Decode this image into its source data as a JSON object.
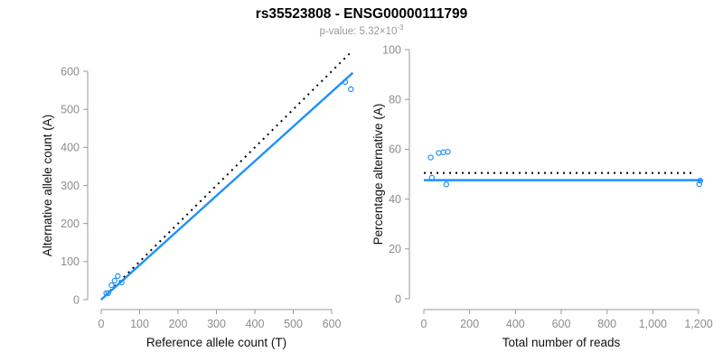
{
  "header": {
    "title": "rs35523808 - ENSG00000111799",
    "subtitle_label": "p-value: ",
    "subtitle_value": "5.32×10",
    "subtitle_exponent": "-3"
  },
  "colors": {
    "accent_blue": "#1E90FF",
    "dotted_black": "#000000",
    "tick_label_gray": "#8C8C8C",
    "axis_gray": "#999999",
    "axis_title_black": "#111111",
    "subtitle_gray": "#999999",
    "background": "#FFFFFF"
  },
  "chart_data": [
    {
      "type": "scatter",
      "name": "allele-counts-panel",
      "title": "",
      "xlabel": "Reference allele count (T)",
      "ylabel": "Alternative allele count (A)",
      "xlim": [
        0,
        600
      ],
      "ylim": [
        0,
        600
      ],
      "grid": false,
      "legend": null,
      "xticks": {
        "values": [
          0,
          100,
          200,
          300,
          400,
          500,
          600
        ],
        "labels": [
          "0",
          "100",
          "200",
          "300",
          "400",
          "500",
          "600"
        ]
      },
      "yticks": {
        "values": [
          0,
          100,
          200,
          300,
          400,
          500,
          600
        ],
        "labels": [
          "0",
          "100",
          "200",
          "300",
          "400",
          "500",
          "600"
        ]
      },
      "points": [
        [
          13,
          17
        ],
        [
          18,
          17
        ],
        [
          27,
          38
        ],
        [
          35,
          50
        ],
        [
          43,
          62
        ],
        [
          53,
          45
        ],
        [
          635,
          572
        ],
        [
          650,
          553
        ]
      ],
      "lines": [
        {
          "name": "identity-line",
          "style": "dotted",
          "color": "#000000",
          "from": [
            0,
            0
          ],
          "to": [
            652,
            652
          ]
        },
        {
          "name": "fit-line",
          "style": "solid",
          "color": "#1E90FF",
          "from": [
            0,
            0
          ],
          "to": [
            655,
            596
          ]
        }
      ]
    },
    {
      "type": "scatter",
      "name": "percentage-panel",
      "title": "",
      "xlabel": "Total number of reads",
      "ylabel": "Percentage alternative (A)",
      "xlim": [
        0,
        1200
      ],
      "ylim": [
        0,
        100
      ],
      "grid": false,
      "legend": null,
      "xticks": {
        "values": [
          0,
          200,
          400,
          600,
          800,
          1000,
          1200
        ],
        "labels": [
          "0",
          "200",
          "400",
          "600",
          "800",
          "1,000",
          "1,200"
        ]
      },
      "yticks": {
        "values": [
          0,
          20,
          40,
          60,
          80,
          100
        ],
        "labels": [
          "0",
          "20",
          "40",
          "60",
          "80",
          "100"
        ]
      },
      "points": [
        [
          30,
          56.7
        ],
        [
          35,
          48.6
        ],
        [
          65,
          58.5
        ],
        [
          85,
          58.8
        ],
        [
          105,
          59.0
        ],
        [
          98,
          45.9
        ],
        [
          1207,
          47.4
        ],
        [
          1203,
          46.0
        ]
      ],
      "lines": [
        {
          "name": "expected-line",
          "style": "dotted",
          "color": "#000000",
          "from": [
            0,
            50.5
          ],
          "to": [
            1175,
            50.5
          ]
        },
        {
          "name": "fit-line",
          "style": "solid",
          "color": "#1E90FF",
          "from": [
            0,
            47.6
          ],
          "to": [
            1215,
            47.6
          ]
        }
      ]
    }
  ]
}
